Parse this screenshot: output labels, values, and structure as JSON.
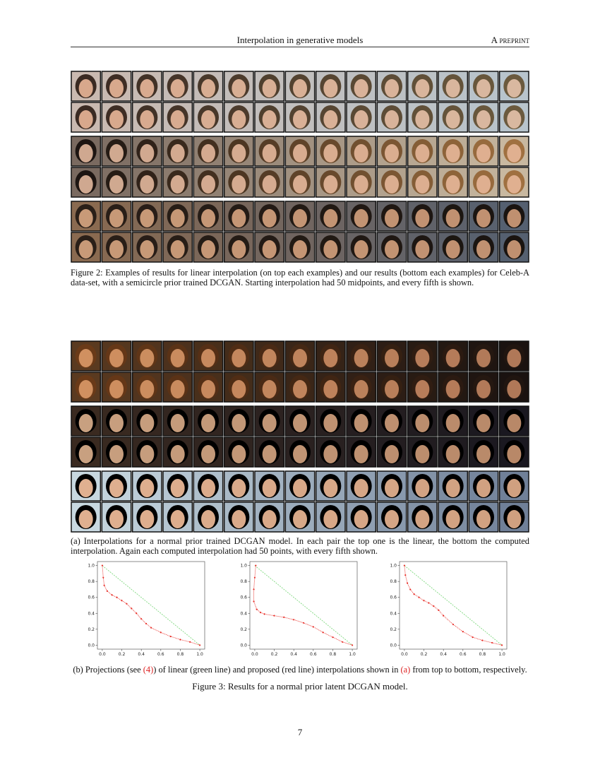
{
  "header": {
    "title": "Interpolation in generative models",
    "tag": "A preprint"
  },
  "figure2": {
    "caption": "Figure 2: Examples of results for linear interpolation (on top each examples) and our results (bottom each examples) for Celeb-A data-set, with a semicircle prior trained DCGAN. Starting interpolation had 50 midpoints, and every fifth is shown."
  },
  "figure3": {
    "subcaption_a": "(a) Interpolations for a normal prior trained DCGAN model. In each pair the top one is the linear, the bottom the computed interpolation. Again each computed interpolation had 50 points, with every fifth shown.",
    "subcaption_b": [
      "(b) Projections (see ",
      "(4)",
      ") of linear (green line) and proposed (red line) interpolations shown in ",
      "(a)",
      " from top to bottom, respectively."
    ],
    "caption": "Figure 3: Results for a normal prior latent DCGAN model."
  },
  "chart_data": [
    {
      "type": "line",
      "xlim": [
        -0.05,
        1.05
      ],
      "ylim": [
        -0.05,
        1.05
      ],
      "xticks": [
        {
          "value": 0,
          "label": "0.0"
        },
        0.2,
        0.4,
        0.6,
        0.8,
        {
          "value": 1,
          "label": "1.0"
        }
      ],
      "yticks": [
        {
          "value": 0,
          "label": "0.0"
        },
        0.2,
        0.4,
        0.6,
        0.8,
        {
          "value": 1,
          "label": "1.0"
        }
      ],
      "series": [
        {
          "color": "#7fd87f",
          "style": "dashed",
          "x": [
            0,
            1
          ],
          "values": [
            1,
            0
          ]
        },
        {
          "color": "#e8302a",
          "style": "dotted",
          "x": [
            0,
            0.01,
            0.02,
            0.05,
            0.1,
            0.15,
            0.2,
            0.25,
            0.3,
            0.35,
            0.4,
            0.45,
            0.5,
            0.6,
            0.7,
            0.8,
            0.9,
            1.0
          ],
          "values": [
            1.0,
            0.85,
            0.75,
            0.68,
            0.63,
            0.6,
            0.56,
            0.52,
            0.46,
            0.4,
            0.33,
            0.27,
            0.22,
            0.16,
            0.11,
            0.07,
            0.04,
            0.0
          ]
        }
      ]
    },
    {
      "type": "line",
      "xlim": [
        -0.05,
        1.05
      ],
      "ylim": [
        -0.05,
        1.05
      ],
      "xticks": [
        {
          "value": 0,
          "label": "0.0"
        },
        0.2,
        0.4,
        0.6,
        0.8,
        {
          "value": 1,
          "label": "1.0"
        }
      ],
      "yticks": [
        {
          "value": 0,
          "label": "0.0"
        },
        0.2,
        0.4,
        0.6,
        0.8,
        {
          "value": 1,
          "label": "1.0"
        }
      ],
      "series": [
        {
          "color": "#7fd87f",
          "style": "dashed",
          "x": [
            0,
            1
          ],
          "values": [
            1,
            0
          ]
        },
        {
          "color": "#e8302a",
          "style": "dotted",
          "x": [
            0.01,
            0.0,
            -0.01,
            -0.01,
            0.02,
            0.06,
            0.1,
            0.2,
            0.3,
            0.4,
            0.5,
            0.6,
            0.7,
            0.8,
            0.9,
            1.0
          ],
          "values": [
            1.0,
            0.85,
            0.7,
            0.55,
            0.45,
            0.41,
            0.39,
            0.37,
            0.35,
            0.32,
            0.28,
            0.23,
            0.16,
            0.1,
            0.04,
            0.0
          ]
        }
      ]
    },
    {
      "type": "line",
      "xlim": [
        -0.05,
        1.05
      ],
      "ylim": [
        -0.05,
        1.05
      ],
      "xticks": [
        {
          "value": 0,
          "label": "0.0"
        },
        0.2,
        0.4,
        0.6,
        0.8,
        {
          "value": 1,
          "label": "1.0"
        }
      ],
      "yticks": [
        {
          "value": 0,
          "label": "0.0"
        },
        0.2,
        0.4,
        0.6,
        0.8,
        {
          "value": 1,
          "label": "1.0"
        }
      ],
      "series": [
        {
          "color": "#7fd87f",
          "style": "dashed",
          "x": [
            0,
            1
          ],
          "values": [
            1,
            0
          ]
        },
        {
          "color": "#e8302a",
          "style": "dotted",
          "x": [
            0,
            0.01,
            0.03,
            0.06,
            0.1,
            0.15,
            0.2,
            0.25,
            0.3,
            0.35,
            0.4,
            0.5,
            0.6,
            0.7,
            0.8,
            0.9,
            1.0
          ],
          "values": [
            1.0,
            0.88,
            0.78,
            0.7,
            0.64,
            0.6,
            0.56,
            0.53,
            0.49,
            0.44,
            0.37,
            0.26,
            0.17,
            0.1,
            0.06,
            0.03,
            0.0
          ]
        }
      ]
    }
  ],
  "page_number": "7"
}
